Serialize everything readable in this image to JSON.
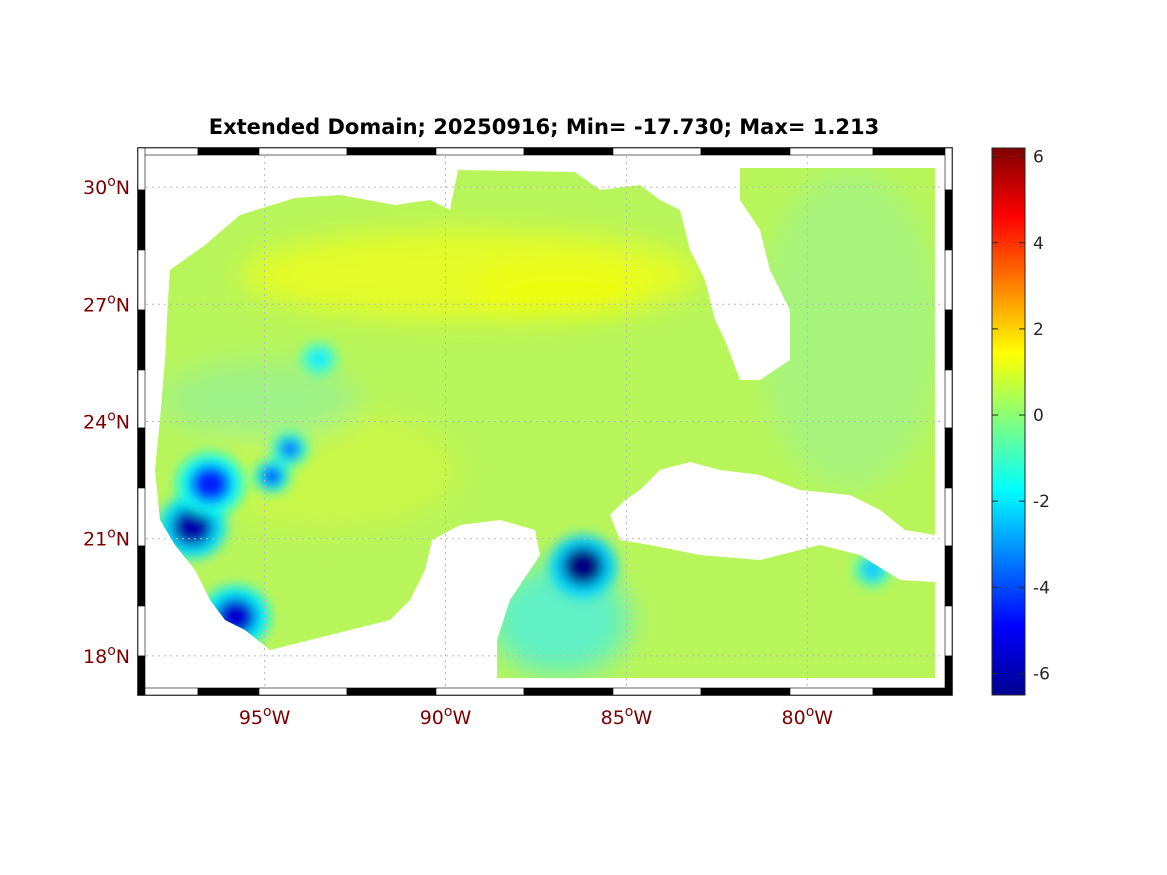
{
  "title": "Extended Domain; 20250916; Min= -17.730; Max= 1.213",
  "chart_data": {
    "type": "heatmap",
    "title": "Extended Domain; 20250916; Min= -17.730; Max= 1.213",
    "lon_range": [
      -98.5,
      -76.0
    ],
    "lat_range": [
      17.0,
      31.0
    ],
    "x_ticks": [
      {
        "value": -95,
        "label": "95",
        "unit": "o",
        "hemi": "W"
      },
      {
        "value": -90,
        "label": "90",
        "unit": "o",
        "hemi": "W"
      },
      {
        "value": -85,
        "label": "85",
        "unit": "o",
        "hemi": "W"
      },
      {
        "value": -80,
        "label": "80",
        "unit": "o",
        "hemi": "W"
      }
    ],
    "y_ticks": [
      {
        "value": 30,
        "label": "30",
        "unit": "o",
        "hemi": "N"
      },
      {
        "value": 27,
        "label": "27",
        "unit": "o",
        "hemi": "N"
      },
      {
        "value": 24,
        "label": "24",
        "unit": "o",
        "hemi": "N"
      },
      {
        "value": 21,
        "label": "21",
        "unit": "o",
        "hemi": "N"
      },
      {
        "value": 18,
        "label": "18",
        "unit": "o",
        "hemi": "N"
      }
    ],
    "colorbar": {
      "colormap": "jet",
      "range": [
        -6.5,
        6.2
      ],
      "ticks": [
        "6",
        "4",
        "2",
        "0",
        "-2",
        "-4",
        "-6"
      ],
      "tick_values": [
        6,
        4,
        2,
        0,
        -2,
        -4,
        -6
      ]
    },
    "field_summary": {
      "background_value": 0.2,
      "bands": [
        {
          "region": "northern Gulf near 27.5N",
          "value": 1.0
        },
        {
          "region": "western Gulf",
          "value": -0.2
        },
        {
          "region": "Florida Straits / Atlantic",
          "value": -0.4
        }
      ],
      "minima": [
        {
          "lon": -86.2,
          "lat": 20.3,
          "value": -6.5
        },
        {
          "lon": -97.0,
          "lat": 21.3,
          "value": -6.0
        },
        {
          "lon": -95.8,
          "lat": 19.0,
          "value": -5.5
        },
        {
          "lon": -96.5,
          "lat": 22.4,
          "value": -4.5
        },
        {
          "lon": -94.8,
          "lat": 22.6,
          "value": -4.0
        },
        {
          "lon": -94.3,
          "lat": 23.3,
          "value": -3.5
        },
        {
          "lon": -93.5,
          "lat": 25.6,
          "value": -2.0
        },
        {
          "lon": -78.2,
          "lat": 20.2,
          "value": -2.5
        }
      ]
    },
    "grid": true,
    "land_color": "#ffffff"
  }
}
